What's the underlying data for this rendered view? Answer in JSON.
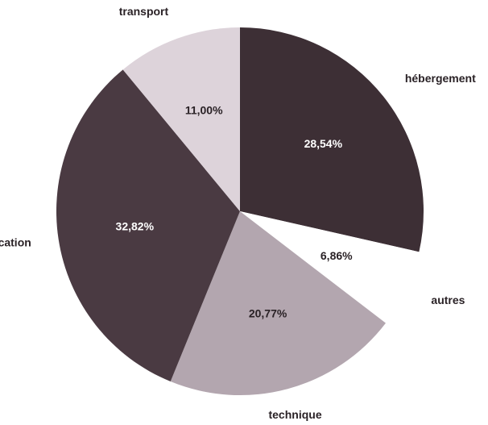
{
  "chart_data": {
    "type": "pie",
    "categories": [
      "hébergement",
      "autres",
      "technique",
      "communication",
      "transport"
    ],
    "values": [
      28.54,
      6.86,
      20.77,
      32.82,
      11.0
    ],
    "value_labels": [
      "28,54%",
      "6,86%",
      "20,77%",
      "32,82%",
      "11,00%"
    ],
    "colors": [
      "#3d2f35",
      "#ffffff",
      "#b3a6af",
      "#4a3a42",
      "#ddd3da"
    ]
  }
}
